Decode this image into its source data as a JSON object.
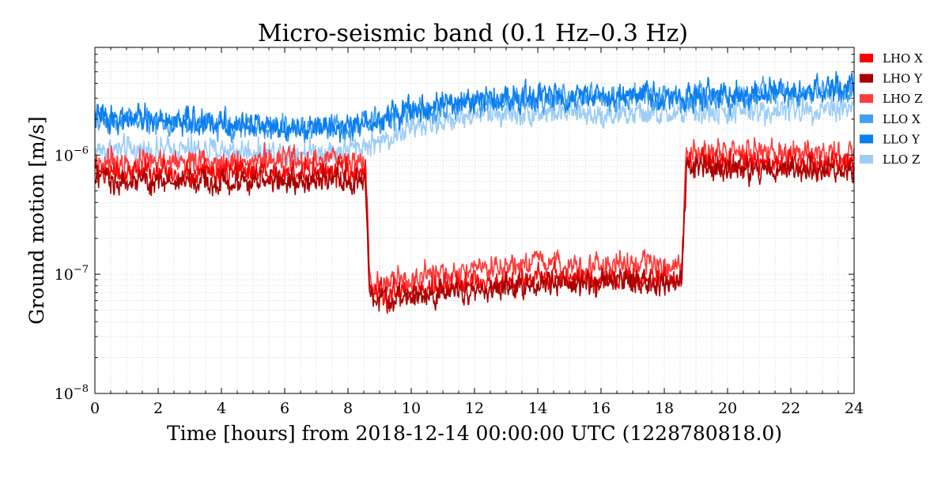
{
  "chart_data": {
    "type": "line",
    "title": "Micro-seismic band (0.1 Hz–0.3 Hz)",
    "xlabel": "Time [hours] from 2018-12-14 00:00:00 UTC (1228780818.0)",
    "ylabel": "Ground motion [m/s]",
    "x_scale": "linear",
    "y_scale": "log",
    "xlim": [
      0,
      24
    ],
    "ylim": [
      1e-08,
      8e-06
    ],
    "x_ticks": [
      0,
      2,
      4,
      6,
      8,
      10,
      12,
      14,
      16,
      18,
      20,
      22,
      24
    ],
    "x_tick_labels": [
      "0",
      "2",
      "4",
      "6",
      "8",
      "10",
      "12",
      "14",
      "16",
      "18",
      "20",
      "22",
      "24"
    ],
    "y_ticks": [
      1e-08,
      1e-07,
      1e-06
    ],
    "y_tick_base": "10",
    "y_tick_exponents": [
      "−8",
      "−7",
      "−6"
    ],
    "grid": true,
    "legend_position": "outside-right-top",
    "series": [
      {
        "name": "LHO X",
        "color": "#ff0000",
        "x": [
          0,
          2,
          4,
          6,
          8,
          8.55,
          8.7,
          10,
          12,
          14,
          16,
          18,
          18.55,
          18.7,
          20,
          22,
          24
        ],
        "y": [
          7.2e-07,
          7e-07,
          7e-07,
          7e-07,
          7e-07,
          7e-07,
          6.5e-08,
          7e-08,
          8.5e-08,
          9.5e-08,
          9e-08,
          9e-08,
          9e-08,
          9e-07,
          8.5e-07,
          8.5e-07,
          8.5e-07
        ]
      },
      {
        "name": "LHO Y",
        "color": "#a80000",
        "x": [
          0,
          2,
          4,
          6,
          8,
          8.55,
          8.7,
          10,
          12,
          14,
          16,
          18,
          18.55,
          18.7,
          20,
          22,
          24
        ],
        "y": [
          6.2e-07,
          6e-07,
          6e-07,
          6e-07,
          6e-07,
          6e-07,
          5.8e-08,
          6.5e-08,
          7.5e-08,
          8.5e-08,
          8.5e-08,
          8.5e-08,
          8.5e-08,
          8e-07,
          7.5e-07,
          7.5e-07,
          7.5e-07
        ]
      },
      {
        "name": "LHO Z",
        "color": "#ff3b3b",
        "x": [
          0,
          2,
          4,
          6,
          8,
          8.55,
          8.7,
          10,
          12,
          14,
          16,
          18,
          18.55,
          18.7,
          20,
          22,
          24
        ],
        "y": [
          9e-07,
          8.8e-07,
          9e-07,
          9e-07,
          9e-07,
          9e-07,
          8e-08,
          9e-08,
          1.05e-07,
          1.2e-07,
          1.2e-07,
          1.2e-07,
          1.2e-07,
          1.05e-06,
          1.05e-06,
          1.05e-06,
          1e-06
        ]
      },
      {
        "name": "LLO X",
        "color": "#42a0f0",
        "x": [
          0,
          2,
          4,
          6,
          8,
          10,
          12,
          14,
          16,
          18,
          20,
          22,
          24
        ],
        "y": [
          2e-06,
          1.9e-06,
          1.8e-06,
          1.7e-06,
          1.7e-06,
          2.3e-06,
          2.8e-06,
          3e-06,
          3e-06,
          3e-06,
          3e-06,
          3.2e-06,
          3.4e-06
        ]
      },
      {
        "name": "LLO Y",
        "color": "#0a7df0",
        "x": [
          0,
          2,
          4,
          6,
          8,
          10,
          12,
          14,
          16,
          18,
          20,
          22,
          24
        ],
        "y": [
          2.1e-06,
          1.95e-06,
          1.85e-06,
          1.75e-06,
          1.75e-06,
          2.4e-06,
          2.9e-06,
          3.1e-06,
          3.1e-06,
          3.1e-06,
          3.1e-06,
          3.3e-06,
          3.6e-06
        ]
      },
      {
        "name": "LLO Z",
        "color": "#9ccdf7",
        "x": [
          0,
          2,
          4,
          6,
          8,
          9,
          10,
          12,
          14,
          16,
          18,
          20,
          22,
          24
        ],
        "y": [
          1.1e-06,
          1.1e-06,
          1.1e-06,
          1.05e-06,
          1.1e-06,
          1.3e-06,
          1.7e-06,
          2.2e-06,
          2.3e-06,
          2.2e-06,
          2.2e-06,
          2.3e-06,
          2.4e-06,
          2.6e-06
        ]
      }
    ],
    "draw_order": [
      "LLO Z",
      "LLO X",
      "LLO Y",
      "LHO Z",
      "LHO X",
      "LHO Y"
    ]
  }
}
